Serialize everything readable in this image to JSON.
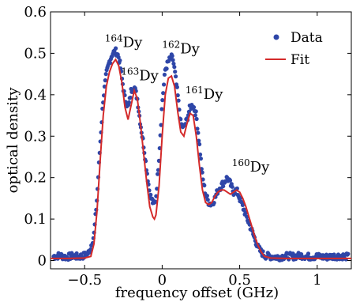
{
  "chart_data": {
    "type": "scatter",
    "xlabel": "frequency offset (GHz)",
    "ylabel": "optical density",
    "xlim": [
      -0.72,
      1.22
    ],
    "ylim": [
      -0.02,
      0.6
    ],
    "xticks": [
      {
        "value": -0.5,
        "label": "−0.5"
      },
      {
        "value": 0,
        "label": "0"
      },
      {
        "value": 0.5,
        "label": "0.5"
      },
      {
        "value": 1,
        "label": "1"
      }
    ],
    "yticks": [
      {
        "value": 0,
        "label": "0"
      },
      {
        "value": 0.1,
        "label": "0.1"
      },
      {
        "value": 0.2,
        "label": "0.2"
      },
      {
        "value": 0.3,
        "label": "0.3"
      },
      {
        "value": 0.4,
        "label": "0.4"
      },
      {
        "value": 0.5,
        "label": "0.5"
      },
      {
        "value": 0.6,
        "label": "0.6"
      }
    ],
    "grid": false,
    "legend_position": "top-right",
    "series": [
      {
        "name": "Data",
        "kind": "scatter",
        "color": "#2e46a8",
        "x": [
          -0.7,
          -0.66,
          -0.62,
          -0.58,
          -0.54,
          -0.5,
          -0.47,
          -0.44,
          -0.42,
          -0.4,
          -0.38,
          -0.36,
          -0.34,
          -0.32,
          -0.3,
          -0.29,
          -0.28,
          -0.27,
          -0.26,
          -0.24,
          -0.22,
          -0.21,
          -0.2,
          -0.18,
          -0.16,
          -0.15,
          -0.14,
          -0.12,
          -0.1,
          -0.08,
          -0.06,
          -0.05,
          -0.04,
          -0.02,
          0.0,
          0.02,
          0.04,
          0.06,
          0.07,
          0.08,
          0.1,
          0.12,
          0.14,
          0.16,
          0.18,
          0.2,
          0.22,
          0.24,
          0.26,
          0.28,
          0.3,
          0.32,
          0.34,
          0.36,
          0.38,
          0.4,
          0.42,
          0.44,
          0.46,
          0.48,
          0.5,
          0.52,
          0.54,
          0.56,
          0.58,
          0.6,
          0.62,
          0.64,
          0.66,
          0.7,
          0.75,
          0.8,
          0.85,
          0.9,
          0.95,
          1.0,
          1.05,
          1.1,
          1.15,
          1.2
        ],
        "y": [
          0.01,
          0.012,
          0.008,
          0.011,
          0.009,
          0.012,
          0.02,
          0.06,
          0.15,
          0.28,
          0.39,
          0.45,
          0.48,
          0.5,
          0.505,
          0.5,
          0.49,
          0.47,
          0.44,
          0.39,
          0.37,
          0.385,
          0.41,
          0.42,
          0.39,
          0.36,
          0.33,
          0.28,
          0.22,
          0.16,
          0.14,
          0.135,
          0.15,
          0.25,
          0.38,
          0.46,
          0.48,
          0.49,
          0.485,
          0.46,
          0.4,
          0.33,
          0.32,
          0.34,
          0.37,
          0.375,
          0.35,
          0.28,
          0.2,
          0.16,
          0.14,
          0.135,
          0.15,
          0.17,
          0.18,
          0.19,
          0.2,
          0.185,
          0.165,
          0.17,
          0.15,
          0.13,
          0.11,
          0.09,
          0.07,
          0.05,
          0.03,
          0.02,
          0.012,
          0.01,
          0.008,
          0.011,
          0.01,
          0.012,
          0.009,
          0.01,
          0.008,
          0.01,
          0.011,
          0.009
        ]
      },
      {
        "name": "Fit",
        "kind": "line",
        "color": "#d42a2a",
        "x": [
          -0.72,
          -0.6,
          -0.5,
          -0.46,
          -0.44,
          -0.42,
          -0.4,
          -0.38,
          -0.36,
          -0.34,
          -0.32,
          -0.3,
          -0.28,
          -0.26,
          -0.24,
          -0.22,
          -0.2,
          -0.18,
          -0.16,
          -0.14,
          -0.12,
          -0.1,
          -0.08,
          -0.06,
          -0.05,
          -0.04,
          -0.02,
          0.0,
          0.02,
          0.04,
          0.06,
          0.08,
          0.1,
          0.12,
          0.14,
          0.16,
          0.18,
          0.2,
          0.22,
          0.24,
          0.26,
          0.28,
          0.3,
          0.32,
          0.34,
          0.36,
          0.38,
          0.4,
          0.42,
          0.44,
          0.46,
          0.48,
          0.5,
          0.52,
          0.54,
          0.56,
          0.58,
          0.6,
          0.62,
          0.64,
          0.66,
          0.7,
          0.8,
          1.0,
          1.22
        ],
        "y": [
          0.005,
          0.005,
          0.006,
          0.01,
          0.04,
          0.12,
          0.24,
          0.35,
          0.42,
          0.455,
          0.475,
          0.485,
          0.47,
          0.43,
          0.37,
          0.34,
          0.375,
          0.41,
          0.39,
          0.33,
          0.26,
          0.19,
          0.13,
          0.105,
          0.1,
          0.11,
          0.18,
          0.3,
          0.4,
          0.44,
          0.445,
          0.42,
          0.36,
          0.31,
          0.3,
          0.33,
          0.355,
          0.35,
          0.3,
          0.23,
          0.17,
          0.14,
          0.135,
          0.14,
          0.155,
          0.165,
          0.17,
          0.17,
          0.165,
          0.16,
          0.165,
          0.17,
          0.165,
          0.15,
          0.13,
          0.105,
          0.08,
          0.055,
          0.035,
          0.02,
          0.01,
          0.006,
          0.005,
          0.005,
          0.005
        ]
      }
    ],
    "annotations": [
      {
        "sup": "164",
        "text": "Dy",
        "x": -0.37,
        "y": 0.515
      },
      {
        "sup": "163",
        "text": "Dy",
        "x": -0.265,
        "y": 0.435
      },
      {
        "sup": "162",
        "text": "Dy",
        "x": 0.0,
        "y": 0.5
      },
      {
        "sup": "161",
        "text": "Dy",
        "x": 0.15,
        "y": 0.39
      },
      {
        "sup": "160",
        "text": "Dy",
        "x": 0.45,
        "y": 0.215
      }
    ]
  }
}
